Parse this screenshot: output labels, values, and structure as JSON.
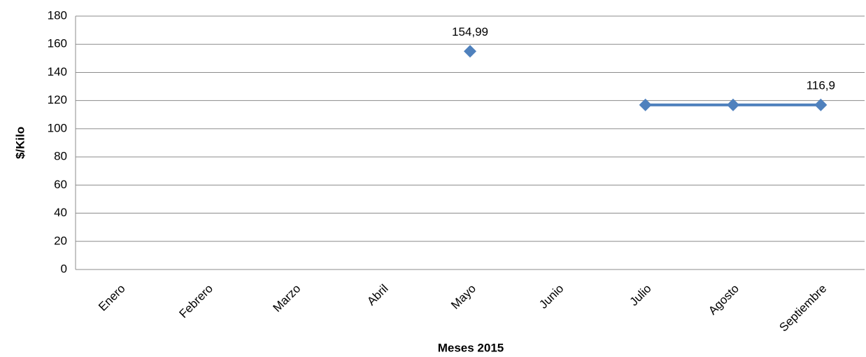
{
  "chart_data": {
    "type": "line",
    "x_label": "Meses 2015",
    "y_label": "$/Kilo",
    "categories": [
      "Enero",
      "Febrero",
      "Marzo",
      "Abril",
      "Mayo",
      "Junio",
      "Julio",
      "Agosto",
      "Septiembre"
    ],
    "series": [
      {
        "color": "#4f81bd",
        "values": [
          null,
          null,
          null,
          null,
          154.99,
          null,
          116.9,
          116.9,
          116.9
        ],
        "value_labels": [
          null,
          null,
          null,
          null,
          "154,99",
          null,
          null,
          null,
          "116,9"
        ]
      }
    ],
    "ylim": [
      0,
      180
    ],
    "yticks": [
      0,
      20,
      40,
      60,
      80,
      100,
      120,
      140,
      160,
      180
    ],
    "grid": true
  }
}
